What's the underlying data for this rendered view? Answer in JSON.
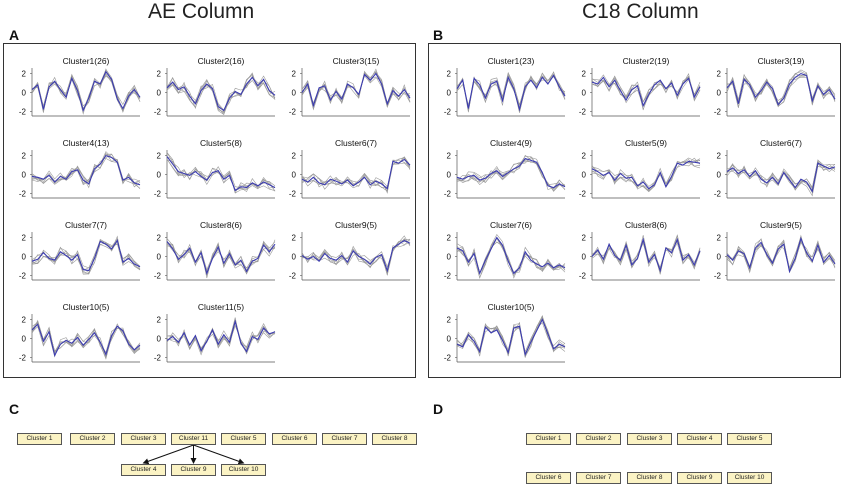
{
  "titles": {
    "ae": "AE Column",
    "c18": "C18 Column"
  },
  "panels": {
    "a": "A",
    "b": "B",
    "c": "C",
    "d": "D"
  },
  "colors": {
    "mean_line": "#3b3bb0",
    "member_line": "#9a9a9a",
    "node_fill": "#fbf3c4",
    "node_border": "#555555",
    "frame": "#333333"
  },
  "chart_data": [
    {
      "type": "line",
      "panel": "A",
      "title": "AE Column",
      "yticks": [
        -2,
        0,
        2
      ],
      "ylim": [
        -2.5,
        2.6
      ],
      "clusters": [
        {
          "title": "Cluster1(26)",
          "values": [
            0.3,
            0.8,
            -1.8,
            0.6,
            1.2,
            0.3,
            -0.5,
            1.5,
            0.2,
            -1.9,
            -0.6,
            1.2,
            0.9,
            2.2,
            1.4,
            -0.7,
            -1.7,
            -0.4,
            0.3,
            -0.5
          ]
        },
        {
          "title": "Cluster2(16)",
          "values": [
            0.5,
            1.1,
            0.3,
            0.6,
            -0.4,
            -1.2,
            0.2,
            0.9,
            0.4,
            -1.5,
            -1.9,
            -0.6,
            0.1,
            -0.2,
            0.9,
            1.6,
            0.7,
            1.4,
            0.2,
            -0.3
          ]
        },
        {
          "title": "Cluster3(15)",
          "values": [
            0.0,
            0.9,
            -1.4,
            0.5,
            0.7,
            -0.8,
            0.1,
            -0.7,
            0.9,
            0.5,
            -0.2,
            1.9,
            1.3,
            2.0,
            0.9,
            -1.2,
            0.2,
            -0.4,
            0.3,
            -0.6
          ]
        },
        {
          "title": "Cluster4(13)",
          "values": [
            -0.2,
            -0.3,
            -0.5,
            -0.1,
            -0.8,
            -0.2,
            -0.5,
            0.3,
            0.5,
            -0.6,
            -1.0,
            0.6,
            1.1,
            2.0,
            1.8,
            1.3,
            -0.6,
            -0.3,
            -0.9,
            -1.1
          ]
        },
        {
          "title": "Cluster5(8)",
          "values": [
            1.9,
            1.1,
            0.3,
            0.1,
            -0.1,
            0.3,
            -0.2,
            -0.6,
            0.2,
            0.4,
            -0.5,
            -0.1,
            -1.7,
            -1.3,
            -1.4,
            -0.9,
            -1.2,
            -0.8,
            -1.1,
            -1.4
          ]
        },
        {
          "title": "Cluster6(7)",
          "values": [
            -0.5,
            -0.8,
            -0.3,
            -0.9,
            -1.1,
            -0.5,
            -0.7,
            -1.0,
            -0.6,
            -1.2,
            -0.8,
            -0.3,
            -1.1,
            -0.7,
            -1.0,
            -1.5,
            1.4,
            1.2,
            1.6,
            1.0
          ]
        },
        {
          "title": "Cluster7(7)",
          "values": [
            -0.5,
            -0.3,
            0.4,
            -0.2,
            -0.4,
            0.5,
            0.1,
            -0.4,
            0.2,
            -1.4,
            -1.5,
            -0.2,
            1.6,
            1.3,
            0.8,
            1.7,
            -0.6,
            -0.2,
            -0.8,
            -1.1
          ]
        },
        {
          "title": "Cluster8(6)",
          "values": [
            1.6,
            0.8,
            -0.3,
            0.2,
            0.9,
            -0.6,
            0.4,
            -1.8,
            -0.2,
            1.0,
            -0.7,
            0.3,
            -0.9,
            -0.4,
            -1.6,
            -0.5,
            -0.2,
            1.2,
            0.5,
            1.3
          ]
        },
        {
          "title": "Cluster9(5)",
          "values": [
            0.1,
            -0.3,
            0.0,
            -0.5,
            0.3,
            -0.2,
            -0.4,
            0.1,
            -0.6,
            0.6,
            0.0,
            -0.3,
            -0.8,
            -0.1,
            0.2,
            -1.5,
            0.9,
            1.3,
            1.7,
            1.4
          ]
        },
        {
          "title": "Cluster10(5)",
          "values": [
            0.9,
            1.5,
            -0.3,
            0.7,
            -1.8,
            -0.6,
            -0.2,
            -0.5,
            0.1,
            -0.7,
            -0.1,
            0.6,
            -0.4,
            -1.7,
            0.3,
            1.3,
            0.8,
            -0.6,
            -1.2,
            -0.7
          ]
        },
        {
          "title": "Cluster11(5)",
          "values": [
            -0.2,
            0.2,
            -0.4,
            0.6,
            -0.7,
            0.3,
            -1.3,
            -0.3,
            0.9,
            -0.6,
            0.4,
            -0.4,
            1.8,
            -0.5,
            -1.4,
            0.2,
            -0.1,
            1.1,
            0.5,
            0.7
          ]
        }
      ]
    },
    {
      "type": "line",
      "panel": "B",
      "title": "C18 Column",
      "yticks": [
        -2,
        0,
        2
      ],
      "ylim": [
        -2.5,
        2.6
      ],
      "clusters": [
        {
          "title": "Cluster1(23)",
          "values": [
            0.4,
            1.3,
            -1.7,
            1.5,
            0.8,
            -0.6,
            0.9,
            1.2,
            -0.9,
            1.6,
            0.4,
            -1.8,
            0.6,
            1.3,
            0.5,
            1.6,
            0.9,
            1.8,
            0.6,
            -0.4
          ]
        },
        {
          "title": "Cluster2(19)",
          "values": [
            1.1,
            0.9,
            1.6,
            0.6,
            1.3,
            0.2,
            -0.8,
            0.3,
            0.7,
            -1.4,
            -0.2,
            0.8,
            1.3,
            0.4,
            1.0,
            -0.3,
            0.9,
            1.5,
            -0.5,
            0.6
          ]
        },
        {
          "title": "Cluster3(19)",
          "values": [
            0.5,
            1.2,
            -1.2,
            1.4,
            0.8,
            -0.5,
            0.2,
            1.1,
            0.4,
            -1.3,
            -0.6,
            0.9,
            1.6,
            2.0,
            1.8,
            -0.9,
            0.7,
            -0.2,
            0.3,
            -0.7
          ]
        },
        {
          "title": "Cluster4(9)",
          "values": [
            -0.3,
            -0.5,
            -0.2,
            -0.1,
            -0.6,
            -0.4,
            0.1,
            0.4,
            -0.2,
            0.2,
            0.6,
            0.9,
            1.7,
            1.5,
            1.3,
            0.2,
            -1.2,
            -1.4,
            -1.0,
            -1.3
          ]
        },
        {
          "title": "Cluster5(9)",
          "values": [
            0.6,
            0.3,
            -0.1,
            0.2,
            -0.6,
            0.1,
            -0.4,
            -0.3,
            -1.2,
            -0.8,
            -1.5,
            -1.1,
            0.2,
            -1.3,
            -0.2,
            1.2,
            1.0,
            1.4,
            1.3,
            1.2
          ]
        },
        {
          "title": "Cluster6(7)",
          "values": [
            0.3,
            0.7,
            0.1,
            0.5,
            -0.2,
            0.4,
            -0.5,
            -0.9,
            -0.3,
            -1.0,
            0.2,
            -0.6,
            -1.4,
            -0.5,
            -0.8,
            -1.8,
            1.2,
            0.9,
            0.6,
            0.8
          ]
        },
        {
          "title": "Cluster7(6)",
          "values": [
            0.9,
            0.6,
            -0.6,
            0.3,
            -1.8,
            -0.4,
            0.8,
            2.0,
            1.2,
            -0.5,
            -1.8,
            -1.2,
            0.5,
            -0.4,
            -0.8,
            -1.1,
            -0.7,
            -1.2,
            -0.9,
            -1.2
          ]
        },
        {
          "title": "Cluster8(6)",
          "values": [
            0.0,
            0.7,
            -0.3,
            1.3,
            0.1,
            -0.4,
            1.2,
            -0.9,
            -0.2,
            1.8,
            -0.6,
            0.2,
            -1.5,
            0.9,
            0.4,
            1.8,
            -0.4,
            0.2,
            -0.9,
            0.6
          ]
        },
        {
          "title": "Cluster9(5)",
          "values": [
            0.2,
            -0.4,
            0.6,
            0.3,
            -1.2,
            0.9,
            1.5,
            0.2,
            -0.7,
            0.8,
            1.3,
            -1.6,
            -0.2,
            1.9,
            0.4,
            -0.5,
            1.2,
            -0.6,
            0.1,
            -0.8
          ]
        },
        {
          "title": "Cluster10(5)",
          "values": [
            -0.6,
            -0.9,
            0.4,
            -0.3,
            -1.4,
            1.2,
            0.6,
            0.9,
            -0.2,
            -1.5,
            1.1,
            1.3,
            -1.7,
            -0.4,
            0.8,
            2.0,
            0.5,
            -1.1,
            -0.6,
            -0.9
          ]
        }
      ]
    },
    {
      "type": "diagram",
      "panel": "C",
      "top_row": [
        "Cluster 1",
        "Cluster 2",
        "Cluster 3",
        "Cluster 11",
        "Cluster 5",
        "Cluster 6",
        "Cluster 7",
        "Cluster 8"
      ],
      "bottom_row": [
        "Cluster 4",
        "Cluster 9",
        "Cluster 10"
      ],
      "edges": [
        [
          "Cluster 11",
          "Cluster 4"
        ],
        [
          "Cluster 11",
          "Cluster 9"
        ],
        [
          "Cluster 11",
          "Cluster 10"
        ]
      ]
    },
    {
      "type": "diagram",
      "panel": "D",
      "top_row": [
        "Cluster 1",
        "Cluster 2",
        "Cluster 3",
        "Cluster 4",
        "Cluster 5"
      ],
      "bottom_row": [
        "Cluster 6",
        "Cluster 7",
        "Cluster 8",
        "Cluster 9",
        "Cluster 10"
      ],
      "edges": []
    }
  ]
}
